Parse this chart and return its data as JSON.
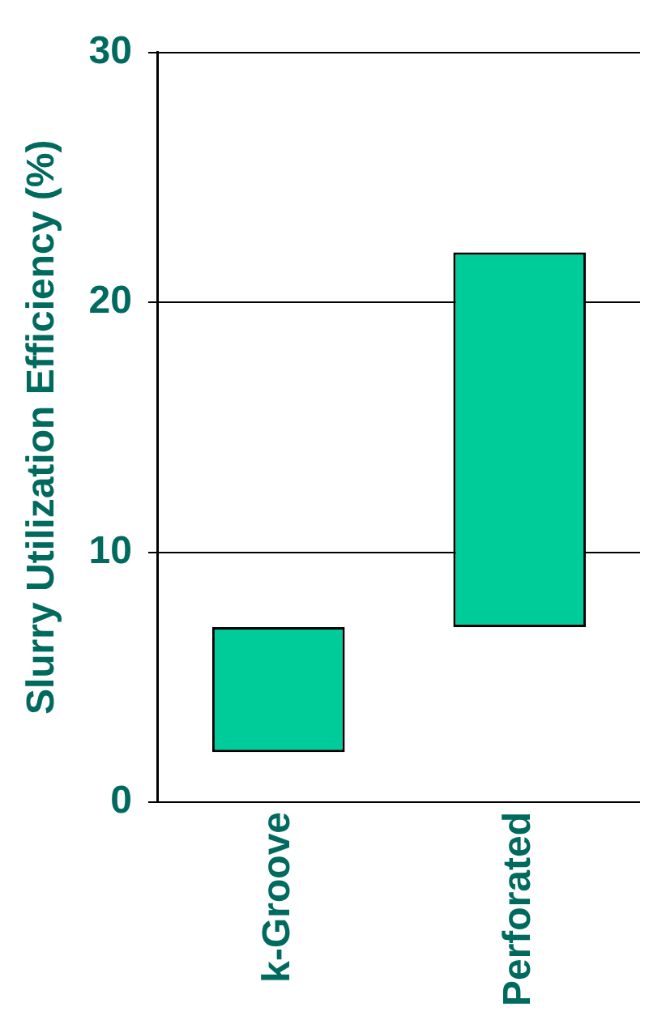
{
  "chart_data": {
    "type": "bar",
    "ylabel": "Slurry Utilization Efficiency (%)",
    "categories": [
      "k-Groove",
      "Perforated"
    ],
    "base": [
      2,
      7
    ],
    "values": [
      5,
      15
    ],
    "color": "#00cc99",
    "ylim": [
      0,
      30
    ],
    "yticks": [
      0,
      10,
      20,
      30
    ],
    "grid": "y",
    "legend": false
  }
}
